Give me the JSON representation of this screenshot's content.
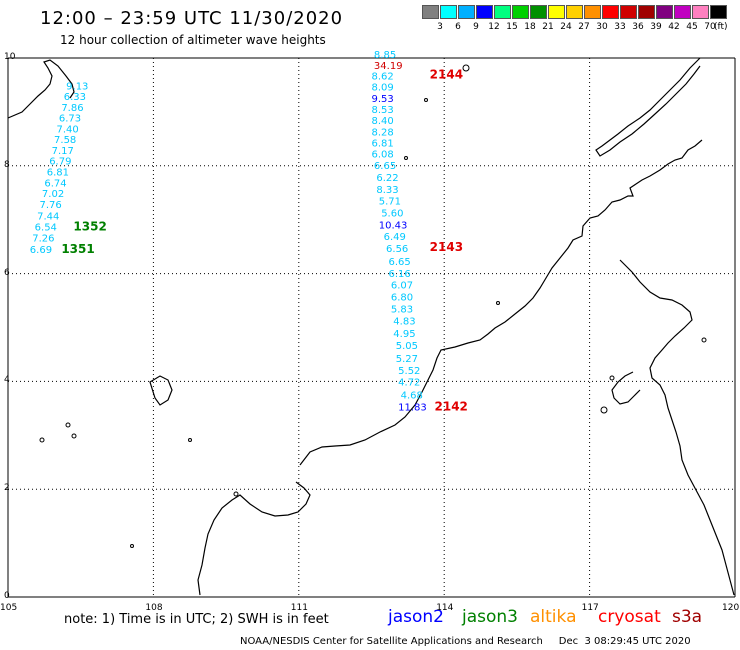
{
  "header": {
    "title": "12:00 – 23:59 UTC 11/30/2020",
    "subtitle": "12 hour collection of altimeter wave heights"
  },
  "colorbar": {
    "labels": [
      "3",
      "6",
      "9",
      "12",
      "15",
      "18",
      "21",
      "24",
      "27",
      "30",
      "33",
      "36",
      "39",
      "42",
      "45",
      "70"
    ],
    "unit": "(ft)",
    "colors": [
      "#808080",
      "#00ffff",
      "#00b0ff",
      "#0000ff",
      "#00ff80",
      "#00d000",
      "#009000",
      "#ffff00",
      "#ffd000",
      "#ff9000",
      "#ff0000",
      "#d00000",
      "#a00000",
      "#800080",
      "#c000c0",
      "#ff80c0",
      "#000000"
    ]
  },
  "axes": {
    "lon_labels": [
      "105",
      "108",
      "111",
      "114",
      "117",
      "120"
    ],
    "lat_labels": [
      "10",
      "8",
      "6",
      "4",
      "2",
      "0"
    ],
    "lon_range": [
      105,
      120
    ],
    "lat_range": [
      0,
      10
    ],
    "grid": true
  },
  "tracks": [
    {
      "points": [
        {
          "value": "9.13",
          "lon": 106.2,
          "lat": 9.42,
          "color": "#00c8ff"
        },
        {
          "value": "6.33",
          "lon": 106.15,
          "lat": 9.22,
          "color": "#00c8ff"
        },
        {
          "value": "7.86",
          "lon": 106.1,
          "lat": 9.02,
          "color": "#00c8ff"
        },
        {
          "value": "6.73",
          "lon": 106.05,
          "lat": 8.82,
          "color": "#00c8ff"
        },
        {
          "value": "7.40",
          "lon": 106.0,
          "lat": 8.62,
          "color": "#00c8ff"
        },
        {
          "value": "7.58",
          "lon": 105.95,
          "lat": 8.42,
          "color": "#00c8ff"
        },
        {
          "value": "7.17",
          "lon": 105.9,
          "lat": 8.22,
          "color": "#00c8ff"
        },
        {
          "value": "6.79",
          "lon": 105.85,
          "lat": 8.02,
          "color": "#00c8ff"
        },
        {
          "value": "6.81",
          "lon": 105.8,
          "lat": 7.82,
          "color": "#00c8ff"
        },
        {
          "value": "6.74",
          "lon": 105.75,
          "lat": 7.62,
          "color": "#00c8ff"
        },
        {
          "value": "7.02",
          "lon": 105.7,
          "lat": 7.42,
          "color": "#00c8ff"
        },
        {
          "value": "7.76",
          "lon": 105.65,
          "lat": 7.22,
          "color": "#00c8ff"
        },
        {
          "value": "7.44",
          "lon": 105.6,
          "lat": 7.0,
          "color": "#00c8ff"
        },
        {
          "value": "6.54",
          "lon": 105.55,
          "lat": 6.8,
          "color": "#00c8ff"
        },
        {
          "value": "7.26",
          "lon": 105.5,
          "lat": 6.6,
          "color": "#00c8ff"
        },
        {
          "value": "6.69",
          "lon": 105.45,
          "lat": 6.38,
          "color": "#00c8ff"
        }
      ],
      "pass_labels": [
        {
          "text": "1352",
          "lon": 106.35,
          "lat": 6.8,
          "color": "#008000"
        },
        {
          "text": "1351",
          "lon": 106.1,
          "lat": 6.38,
          "color": "#008000"
        }
      ]
    },
    {
      "points": [
        {
          "value": "8.85",
          "lon": 112.55,
          "lat": 10.0,
          "color": "#00c8ff"
        },
        {
          "value": "34.19",
          "lon": 112.55,
          "lat": 9.8,
          "color": "#d00000"
        },
        {
          "value": "8.62",
          "lon": 112.5,
          "lat": 9.6,
          "color": "#00c8ff"
        },
        {
          "value": "8.09",
          "lon": 112.5,
          "lat": 9.4,
          "color": "#00c8ff"
        },
        {
          "value": "9.53",
          "lon": 112.5,
          "lat": 9.18,
          "color": "#0000ff"
        },
        {
          "value": "8.53",
          "lon": 112.5,
          "lat": 8.98,
          "color": "#00c8ff"
        },
        {
          "value": "8.40",
          "lon": 112.5,
          "lat": 8.78,
          "color": "#00c8ff"
        },
        {
          "value": "8.28",
          "lon": 112.5,
          "lat": 8.56,
          "color": "#00c8ff"
        },
        {
          "value": "6.81",
          "lon": 112.5,
          "lat": 8.36,
          "color": "#00c8ff"
        },
        {
          "value": "6.08",
          "lon": 112.5,
          "lat": 8.15,
          "color": "#00c8ff"
        },
        {
          "value": "6.65",
          "lon": 112.55,
          "lat": 7.94,
          "color": "#00c8ff"
        },
        {
          "value": "6.22",
          "lon": 112.6,
          "lat": 7.72,
          "color": "#00c8ff"
        },
        {
          "value": "8.33",
          "lon": 112.6,
          "lat": 7.5,
          "color": "#00c8ff"
        },
        {
          "value": "5.71",
          "lon": 112.65,
          "lat": 7.28,
          "color": "#00c8ff"
        },
        {
          "value": "5.60",
          "lon": 112.7,
          "lat": 7.06,
          "color": "#00c8ff"
        },
        {
          "value": "10.43",
          "lon": 112.65,
          "lat": 6.84,
          "color": "#0000ff"
        },
        {
          "value": "6.49",
          "lon": 112.75,
          "lat": 6.62,
          "color": "#00c8ff"
        },
        {
          "value": "6.56",
          "lon": 112.8,
          "lat": 6.4,
          "color": "#00c8ff"
        },
        {
          "value": "6.65",
          "lon": 112.85,
          "lat": 6.16,
          "color": "#00c8ff"
        },
        {
          "value": "6.16",
          "lon": 112.85,
          "lat": 5.94,
          "color": "#00c8ff"
        },
        {
          "value": "6.07",
          "lon": 112.9,
          "lat": 5.72,
          "color": "#00c8ff"
        },
        {
          "value": "6.80",
          "lon": 112.9,
          "lat": 5.5,
          "color": "#00c8ff"
        },
        {
          "value": "5.83",
          "lon": 112.9,
          "lat": 5.28,
          "color": "#00c8ff"
        },
        {
          "value": "4.83",
          "lon": 112.95,
          "lat": 5.06,
          "color": "#00c8ff"
        },
        {
          "value": "4.95",
          "lon": 112.95,
          "lat": 4.82,
          "color": "#00c8ff"
        },
        {
          "value": "5.05",
          "lon": 113.0,
          "lat": 4.6,
          "color": "#00c8ff"
        },
        {
          "value": "5.27",
          "lon": 113.0,
          "lat": 4.36,
          "color": "#00c8ff"
        },
        {
          "value": "5.52",
          "lon": 113.05,
          "lat": 4.14,
          "color": "#00c8ff"
        },
        {
          "value": "4.72",
          "lon": 113.05,
          "lat": 3.92,
          "color": "#00c8ff"
        },
        {
          "value": "4.68",
          "lon": 113.1,
          "lat": 3.68,
          "color": "#00c8ff"
        },
        {
          "value": "11.83",
          "lon": 113.05,
          "lat": 3.46,
          "color": "#0000ff"
        }
      ],
      "pass_labels": [
        {
          "text": "2144",
          "lon": 113.7,
          "lat": 9.62,
          "color": "#e00000"
        },
        {
          "text": "2143",
          "lon": 113.7,
          "lat": 6.42,
          "color": "#e00000"
        },
        {
          "text": "2142",
          "lon": 113.8,
          "lat": 3.46,
          "color": "#e00000"
        }
      ]
    }
  ],
  "footer": {
    "note": "note:  1) Time is in UTC;  2) SWH is in feet",
    "legend": [
      {
        "name": "jason2",
        "color": "#0000ff"
      },
      {
        "name": "jason3",
        "color": "#008000"
      },
      {
        "name": "altika",
        "color": "#ff9000"
      },
      {
        "name": "cryosat",
        "color": "#ff0000"
      },
      {
        "name": "s3a",
        "color": "#a00000"
      }
    ],
    "credit": "NOAA/NESDIS Center for Satellite Applications and Research",
    "timestamp": "Dec  3 08:29:45 UTC 2020"
  }
}
